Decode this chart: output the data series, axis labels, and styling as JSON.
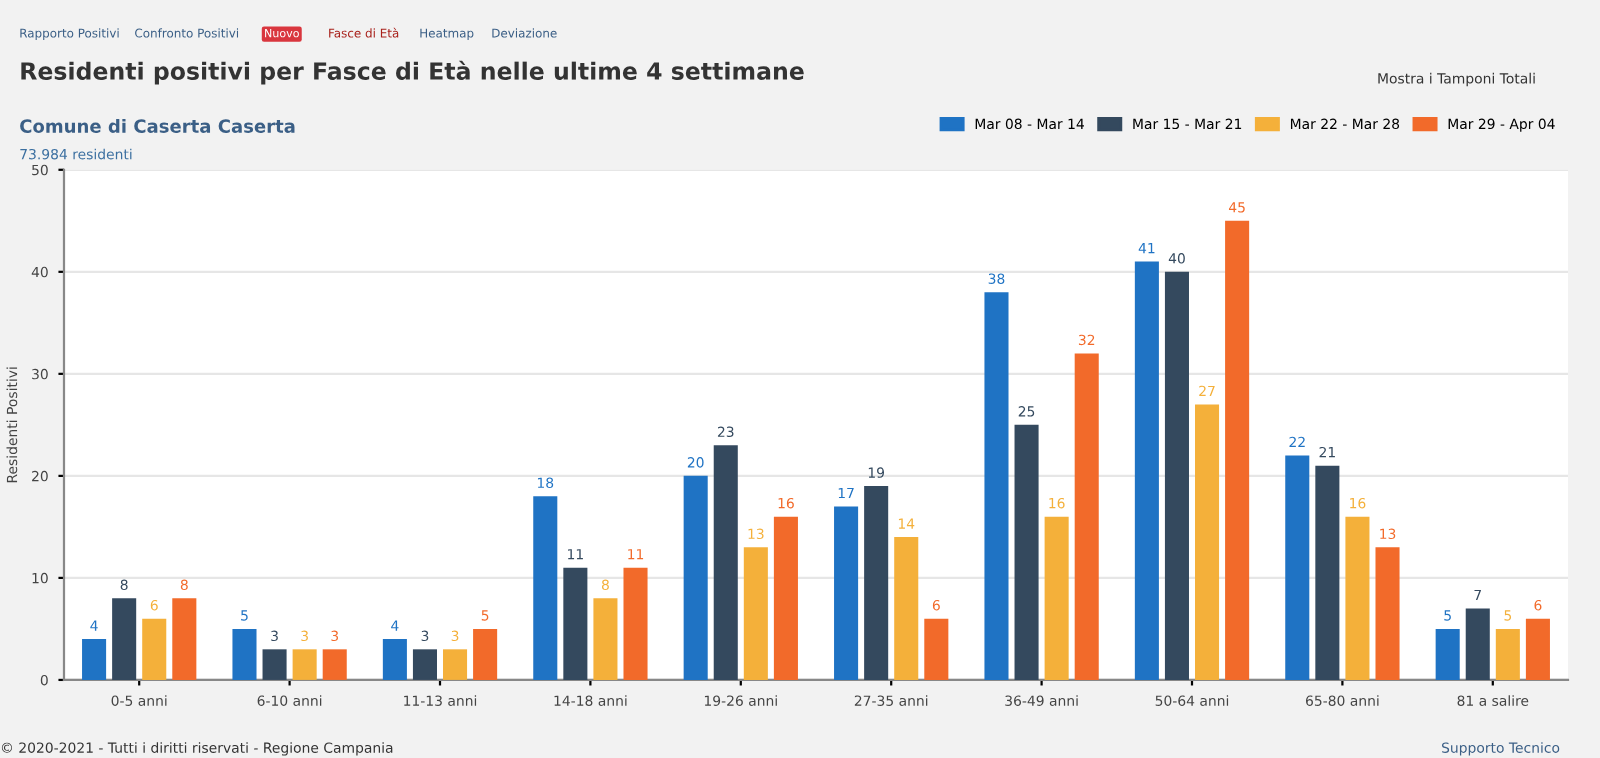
{
  "chart_data": {
    "type": "bar",
    "title": "Residenti positivi per Fasce di Età nelle ultime 4 settimane",
    "subtitle": "Comune di Caserta Caserta",
    "annotations": [
      "73.984 residenti",
      "Rapporto Positivi",
      "Confronto Positivi",
      "Nuovo",
      "Fasce di Età",
      "Heatmap",
      "Deviazione",
      "Mostra i Tamponi Totali",
      "© 2020-2021 - Tutti i diritti riservati - Regione Campania",
      "Supporto Tecnico"
    ],
    "ylabel": "Residenti Positivi",
    "categories": [
      "0-5 anni",
      "6-10 anni",
      "11-13 anni",
      "14-18 anni",
      "19-26 anni",
      "27-35 anni",
      "36-49 anni",
      "50-64 anni",
      "65-80 anni",
      "81 a salire"
    ],
    "series": [
      {
        "name": "Mar 08 - Mar 14",
        "color": "#1f73c4",
        "values": [
          4,
          5,
          4,
          18,
          20,
          17,
          38,
          41,
          22,
          5
        ]
      },
      {
        "name": "Mar 15 - Mar 21",
        "color": "#34495e",
        "values": [
          8,
          3,
          3,
          11,
          23,
          19,
          25,
          40,
          21,
          7
        ]
      },
      {
        "name": "Mar 22 - Mar 28",
        "color": "#f4b03a",
        "values": [
          6,
          3,
          3,
          8,
          13,
          14,
          16,
          27,
          16,
          5
        ]
      },
      {
        "name": "Mar 29 - Apr 04",
        "color": "#f26a2a",
        "values": [
          8,
          3,
          5,
          11,
          16,
          6,
          32,
          45,
          13,
          6
        ]
      }
    ],
    "ylim": [
      0,
      50
    ],
    "yticks": [
      0,
      10,
      20,
      30,
      40,
      50
    ],
    "grid": "y",
    "legend": "top right",
    "data_labels": true
  }
}
